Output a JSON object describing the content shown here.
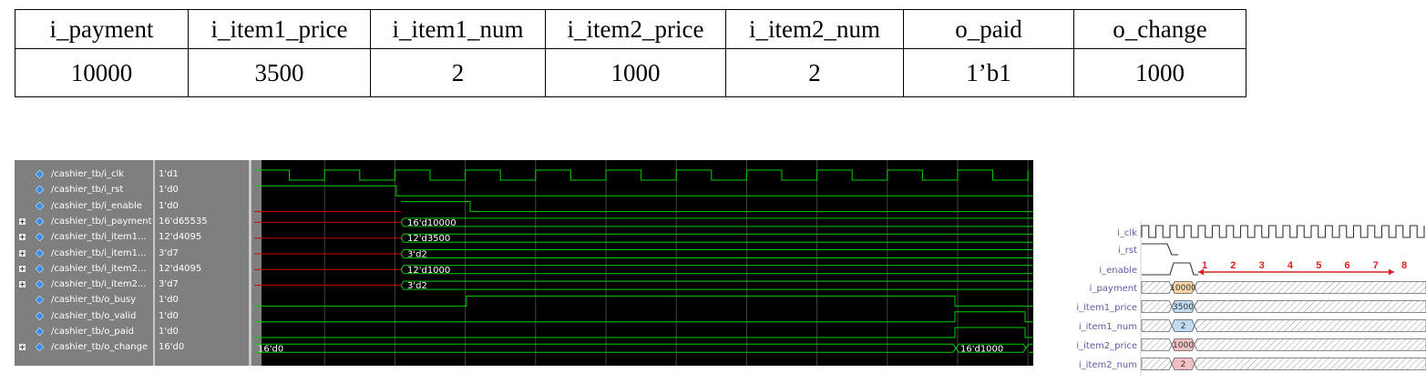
{
  "spec_table": {
    "headers": [
      "i_payment",
      "i_item1_price",
      "i_item1_num",
      "i_item2_price",
      "i_item2_num",
      "o_paid",
      "o_change"
    ],
    "values": [
      "10000",
      "3500",
      "2",
      "1000",
      "2",
      "1’b1",
      "1000"
    ]
  },
  "waveform": {
    "signals": [
      {
        "name": "/cashier_tb/i_clk",
        "value": "1'd1",
        "expandable": false
      },
      {
        "name": "/cashier_tb/i_rst",
        "value": "1'd0",
        "expandable": false
      },
      {
        "name": "/cashier_tb/i_enable",
        "value": "1'd0",
        "expandable": false
      },
      {
        "name": "/cashier_tb/i_payment",
        "value": "16'd65535",
        "expandable": true
      },
      {
        "name": "/cashier_tb/i_item1...",
        "value": "12'd4095",
        "expandable": true
      },
      {
        "name": "/cashier_tb/i_item1...",
        "value": "3'd7",
        "expandable": true
      },
      {
        "name": "/cashier_tb/i_item2...",
        "value": "12'd4095",
        "expandable": true
      },
      {
        "name": "/cashier_tb/i_item2...",
        "value": "3'd7",
        "expandable": true
      },
      {
        "name": "/cashier_tb/o_busy",
        "value": "1'd0",
        "expandable": false
      },
      {
        "name": "/cashier_tb/o_valid",
        "value": "1'd0",
        "expandable": false
      },
      {
        "name": "/cashier_tb/o_paid",
        "value": "1'd0",
        "expandable": false
      },
      {
        "name": "/cashier_tb/o_change",
        "value": "16'd0",
        "expandable": true
      }
    ],
    "bus_labels": {
      "i_payment": "16'd10000",
      "i_item1_price": "12'd3500",
      "i_item1_num": "3'd2",
      "i_item2_price": "12'd1000",
      "i_item2_num": "3'd2",
      "o_change_initial": "16'd0",
      "o_change_final": "16'd1000"
    },
    "colors": {
      "background": "#000000",
      "trace": "#00d000",
      "undefined": "#d00000",
      "panel": "#7f7f7f",
      "icon": "#3a8ee6"
    }
  },
  "mini_timing": {
    "labels": [
      "i_clk",
      "i_rst",
      "i_enable",
      "i_payment",
      "i_item1_price",
      "i_item1_num",
      "i_item2_price",
      "i_item2_num"
    ],
    "bubbles": [
      "10000",
      "3500",
      "2",
      "1000",
      "2"
    ],
    "cycle_numbers": [
      "1",
      "2",
      "3",
      "4",
      "5",
      "6",
      "7",
      "8"
    ],
    "colors": {
      "bubble_orange": "#f5d7a6",
      "bubble_blue": "#bfdcf3",
      "bubble_pink": "#f3c1c4",
      "arrow": "#d82020",
      "label": "#5a5aa8"
    }
  }
}
